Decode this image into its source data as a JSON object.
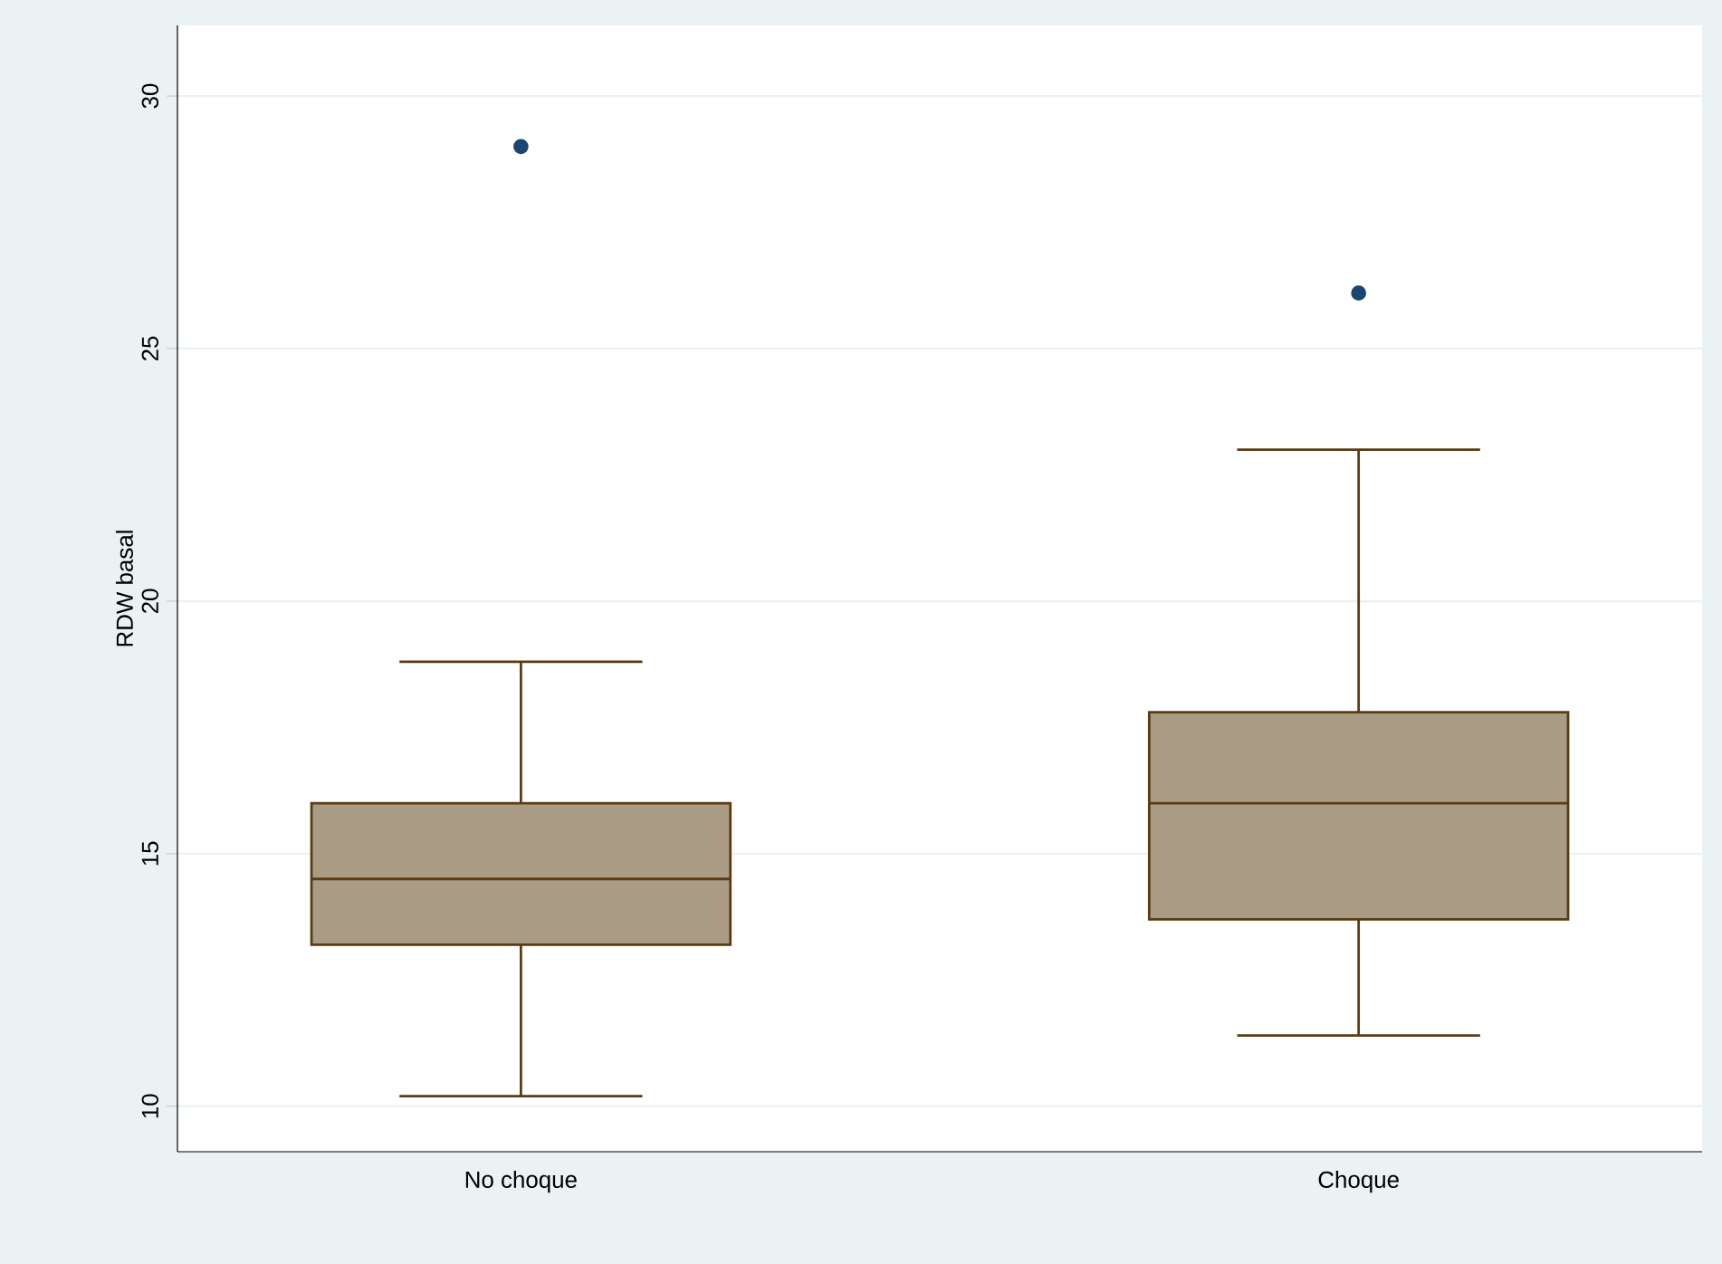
{
  "chart_data": {
    "type": "box",
    "ylabel": "RDW basal",
    "categories": [
      "No choque",
      "Choque"
    ],
    "series": [
      {
        "color": "#aa9c84",
        "boxes": [
          {
            "low": 10.2,
            "q1": 13.2,
            "median": 14.5,
            "q3": 16.0,
            "high": 18.8,
            "outliers": [
              29.0
            ]
          },
          {
            "low": 11.4,
            "q1": 13.7,
            "median": 16.0,
            "q3": 17.8,
            "high": 23.0,
            "outliers": [
              26.1
            ]
          }
        ]
      }
    ],
    "ylim": [
      9.1,
      31.4
    ],
    "yticks": [
      10,
      15,
      20,
      25,
      30
    ],
    "grid": "y"
  }
}
